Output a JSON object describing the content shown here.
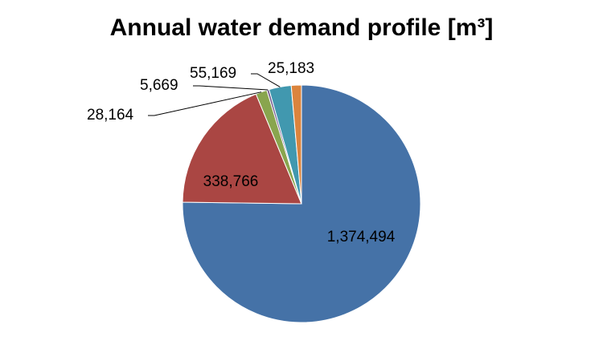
{
  "chart_data": {
    "type": "pie",
    "title": "Annual water demand profile [m³]",
    "slices": [
      {
        "value": 1374494,
        "label": "1,374,494",
        "color": "#4572A7",
        "label_placement": "inside"
      },
      {
        "value": 338766,
        "label": "338,766",
        "color": "#AA4643",
        "label_placement": "inside"
      },
      {
        "value": 28164,
        "label": "28,164",
        "color": "#89A54E",
        "label_placement": "outside"
      },
      {
        "value": 5669,
        "label": "5,669",
        "color": "#71588F",
        "label_placement": "outside"
      },
      {
        "value": 55169,
        "label": "55,169",
        "color": "#4198AF",
        "label_placement": "outside"
      },
      {
        "value": 25183,
        "label": "25,183",
        "color": "#DB843D",
        "label_placement": "outside"
      }
    ],
    "start_angle": "12 o'clock",
    "direction": "clockwise",
    "legend": "none"
  }
}
